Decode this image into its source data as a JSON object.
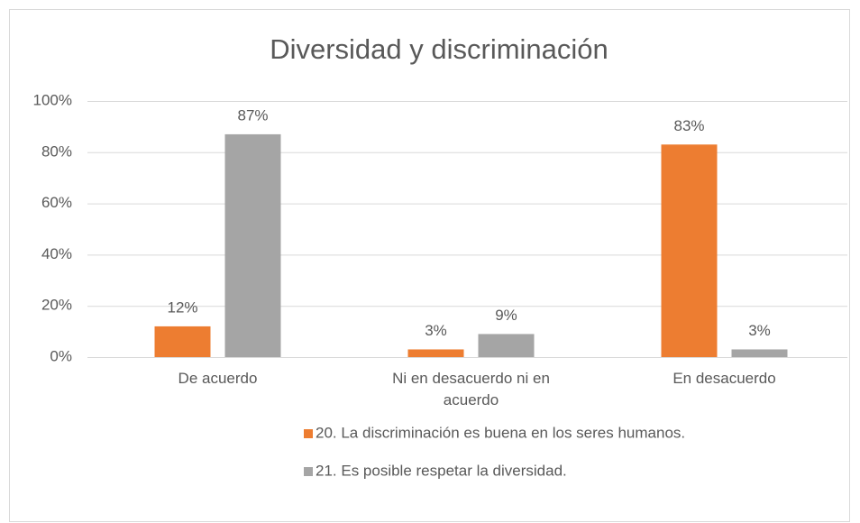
{
  "chart_data": {
    "type": "bar",
    "title": "Diversidad y discriminación",
    "categories": [
      "De acuerdo",
      "Ni en desacuerdo ni en acuerdo",
      "En desacuerdo"
    ],
    "series": [
      {
        "name": "20. La discriminación es buena en los seres humanos.",
        "color": "#ed7d31",
        "values": [
          12,
          3,
          83
        ],
        "value_labels": [
          "12%",
          "3%",
          "83%"
        ]
      },
      {
        "name": "21. Es posible respetar la diversidad.",
        "color": "#a5a5a5",
        "values": [
          87,
          9,
          3
        ],
        "value_labels": [
          "87%",
          "9%",
          "3%"
        ]
      }
    ],
    "ylim": [
      0,
      100
    ],
    "yticks": [
      {
        "value": 0,
        "label": "0%"
      },
      {
        "value": 20,
        "label": "20%"
      },
      {
        "value": 40,
        "label": "40%"
      },
      {
        "value": 60,
        "label": "60%"
      },
      {
        "value": 80,
        "label": "80%"
      },
      {
        "value": 100,
        "label": "100%"
      }
    ],
    "grid": true,
    "legend": "bottom"
  }
}
